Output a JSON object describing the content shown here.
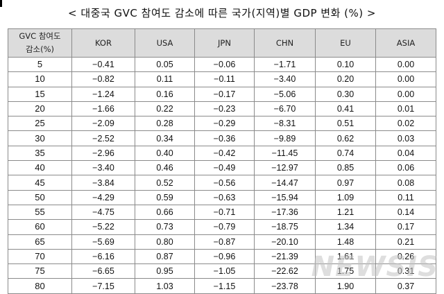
{
  "title": "< 대중국 GVC 참여도 감소에 따른 국가(지역)별 GDP 변화 (%) >",
  "table": {
    "header": {
      "row_key_line1": "GVC 참여도",
      "row_key_line2": "감소(%)",
      "columns": [
        "KOR",
        "USA",
        "JPN",
        "CHN",
        "EU",
        "ASIA"
      ]
    },
    "rows": [
      [
        "5",
        "−0.41",
        "0.05",
        "−0.06",
        "−1.71",
        "0.10",
        "0.00"
      ],
      [
        "10",
        "−0.82",
        "0.11",
        "−0.11",
        "−3.40",
        "0.20",
        "0.00"
      ],
      [
        "15",
        "−1.24",
        "0.16",
        "−0.17",
        "−5.06",
        "0.30",
        "0.00"
      ],
      [
        "20",
        "−1.66",
        "0.22",
        "−0.23",
        "−6.70",
        "0.41",
        "0.01"
      ],
      [
        "25",
        "−2.09",
        "0.28",
        "−0.29",
        "−8.31",
        "0.51",
        "0.02"
      ],
      [
        "30",
        "−2.52",
        "0.34",
        "−0.36",
        "−9.89",
        "0.62",
        "0.03"
      ],
      [
        "35",
        "−2.96",
        "0.40",
        "−0.42",
        "−11.45",
        "0.74",
        "0.04"
      ],
      [
        "40",
        "−3.40",
        "0.46",
        "−0.49",
        "−12.97",
        "0.85",
        "0.06"
      ],
      [
        "45",
        "−3.84",
        "0.52",
        "−0.56",
        "−14.47",
        "0.97",
        "0.08"
      ],
      [
        "50",
        "−4.29",
        "0.59",
        "−0.63",
        "−15.94",
        "1.09",
        "0.11"
      ],
      [
        "55",
        "−4.75",
        "0.66",
        "−0.71",
        "−17.36",
        "1.21",
        "0.14"
      ],
      [
        "60",
        "−5.22",
        "0.73",
        "−0.79",
        "−18.75",
        "1.34",
        "0.17"
      ],
      [
        "65",
        "−5.69",
        "0.80",
        "−0.87",
        "−20.10",
        "1.48",
        "0.21"
      ],
      [
        "70",
        "−6.16",
        "0.87",
        "−0.96",
        "−21.39",
        "1.61",
        "0.26"
      ],
      [
        "75",
        "−6.65",
        "0.95",
        "−1.05",
        "−22.62",
        "1.75",
        "0.31"
      ],
      [
        "80",
        "−7.15",
        "1.03",
        "−1.15",
        "−23.78",
        "1.90",
        "0.37"
      ]
    ]
  },
  "watermark": "NEWSIS"
}
